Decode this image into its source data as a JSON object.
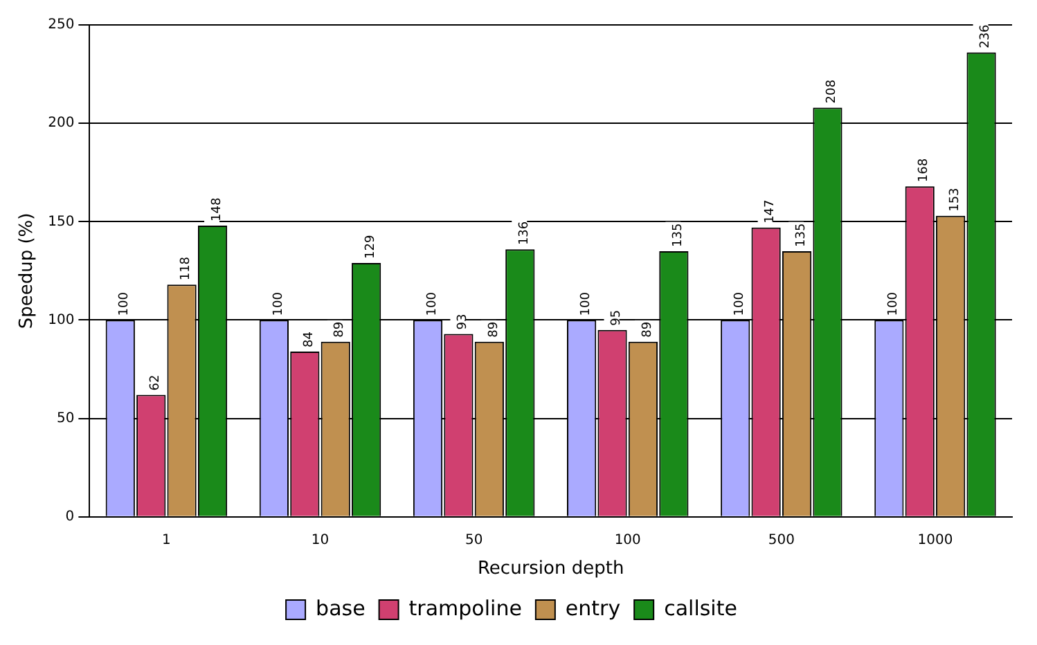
{
  "chart_data": {
    "type": "bar",
    "xlabel": "Recursion depth",
    "ylabel": "Speedup (%)",
    "categories": [
      "1",
      "10",
      "50",
      "100",
      "500",
      "1000"
    ],
    "series": [
      {
        "name": "base",
        "color": "#aaaaff",
        "values": [
          100,
          100,
          100,
          100,
          100,
          100
        ]
      },
      {
        "name": "trampoline",
        "color": "#d04070",
        "values": [
          62,
          84,
          93,
          95,
          147,
          168
        ]
      },
      {
        "name": "entry",
        "color": "#c09050",
        "values": [
          118,
          89,
          89,
          89,
          135,
          153
        ]
      },
      {
        "name": "callsite",
        "color": "#1a8a1a",
        "values": [
          148,
          129,
          136,
          135,
          208,
          236
        ]
      }
    ],
    "ylim": [
      0,
      250
    ],
    "yticks": [
      0,
      50,
      100,
      150,
      200,
      250
    ],
    "grid": "y",
    "legend": "bottom",
    "data_labels": true
  }
}
